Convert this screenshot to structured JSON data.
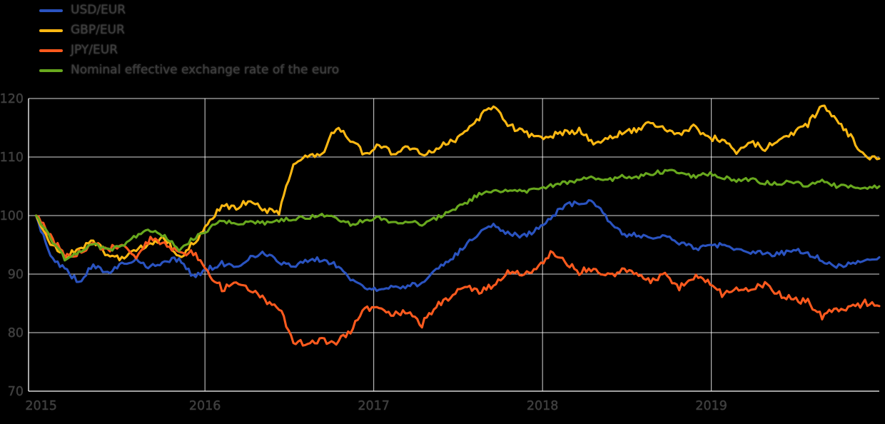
{
  "page": {
    "background": "#000000"
  },
  "legend": {
    "position": "top-left",
    "items": [
      {
        "label": "USD/EUR",
        "color": "#2a53c0"
      },
      {
        "label": "GBP/EUR",
        "color": "#fcb813"
      },
      {
        "label": "JPY/EUR",
        "color": "#fd5a1e"
      },
      {
        "label": "Nominal effective exchange rate of the euro",
        "color": "#68a81e"
      }
    ]
  },
  "chart_data": {
    "type": "line",
    "title": "",
    "xlabel": "",
    "ylabel": "",
    "x_frequency": "monthly",
    "x_start": "2015-01",
    "x_end": "2019-12",
    "x_tick_labels": [
      "2015",
      "2016",
      "2017",
      "2018",
      "2019"
    ],
    "x_tick_years": [
      2015,
      2016,
      2017,
      2018,
      2019
    ],
    "y_ticks": [
      70,
      80,
      90,
      100,
      110,
      120
    ],
    "ylim": [
      70,
      120
    ],
    "grid": true,
    "grid_color": "#ffffff",
    "background": "#000000",
    "tick_text_color": "#3e3e3e",
    "normalized_base": 100,
    "series": [
      {
        "name": "USD/EUR",
        "color": "#2a53c0",
        "values": [
          100,
          92.8,
          90.8,
          88.6,
          91.6,
          90.2,
          92.0,
          92.5,
          91.2,
          92.3,
          92.6,
          89.6,
          90.8,
          91.9,
          91.1,
          93.1,
          93.6,
          92.1,
          91.4,
          92.2,
          92.6,
          91.5,
          89.2,
          87.6,
          87.4,
          88.1,
          87.8,
          88.6,
          90.6,
          92.6,
          94.7,
          97.2,
          98.6,
          97.0,
          96.4,
          97.6,
          99.6,
          101.8,
          102.1,
          102.5,
          99.4,
          96.9,
          96.6,
          95.9,
          96.5,
          95.4,
          94.4,
          94.6,
          95.0,
          94.4,
          93.9,
          93.4,
          93.5,
          94.1,
          93.6,
          92.4,
          91.4,
          91.6,
          92.0,
          92.6
        ]
      },
      {
        "name": "GBP/EUR",
        "color": "#fcb813",
        "values": [
          100,
          95.2,
          93.0,
          94.2,
          95.6,
          93.4,
          92.6,
          94.1,
          95.2,
          96.2,
          92.8,
          95.4,
          98.4,
          101.8,
          101.3,
          102.9,
          101.0,
          100.4,
          108.6,
          110.2,
          110.6,
          115.2,
          113.0,
          110.6,
          112.2,
          110.6,
          112.1,
          110.2,
          111.6,
          112.6,
          114.1,
          116.6,
          119.0,
          115.6,
          114.4,
          113.4,
          113.6,
          114.1,
          114.6,
          112.1,
          113.4,
          114.1,
          114.6,
          116.1,
          115.0,
          113.6,
          115.1,
          113.4,
          113.0,
          111.1,
          112.4,
          111.6,
          112.6,
          114.1,
          115.6,
          118.6,
          116.4,
          113.4,
          110.1,
          109.6
        ]
      },
      {
        "name": "JPY/EUR",
        "color": "#fd5a1e",
        "values": [
          100,
          96.4,
          93.1,
          93.6,
          95.4,
          94.1,
          95.1,
          93.1,
          95.9,
          95.4,
          93.4,
          93.6,
          90.4,
          87.6,
          88.1,
          87.4,
          85.6,
          84.4,
          78.4,
          78.1,
          78.6,
          78.4,
          80.1,
          84.1,
          84.6,
          83.1,
          83.6,
          81.4,
          84.6,
          86.1,
          88.1,
          87.1,
          88.1,
          90.6,
          90.1,
          90.6,
          93.4,
          92.1,
          90.4,
          91.1,
          89.6,
          90.6,
          90.1,
          88.6,
          90.1,
          87.6,
          89.6,
          89.1,
          86.6,
          87.6,
          87.4,
          88.1,
          86.6,
          85.6,
          85.4,
          82.6,
          84.1,
          84.1,
          85.1,
          84.6
        ]
      },
      {
        "name": "Nominal effective exchange rate of the euro",
        "color": "#68a81e",
        "values": [
          100,
          96.1,
          92.6,
          93.6,
          95.1,
          94.1,
          94.6,
          96.6,
          97.6,
          96.6,
          94.1,
          96.1,
          97.6,
          99.1,
          98.6,
          99.1,
          98.6,
          99.1,
          99.6,
          99.6,
          100.1,
          99.6,
          98.6,
          99.1,
          99.6,
          98.6,
          99.1,
          98.6,
          99.6,
          100.6,
          102.1,
          103.6,
          104.1,
          104.1,
          104.1,
          104.6,
          105.1,
          105.6,
          106.1,
          106.6,
          106.1,
          106.6,
          106.6,
          107.1,
          107.6,
          107.4,
          106.6,
          107.1,
          106.6,
          106.1,
          106.1,
          105.6,
          105.6,
          105.6,
          105.1,
          106.1,
          105.1,
          105.1,
          104.6,
          105.1
        ]
      }
    ]
  }
}
